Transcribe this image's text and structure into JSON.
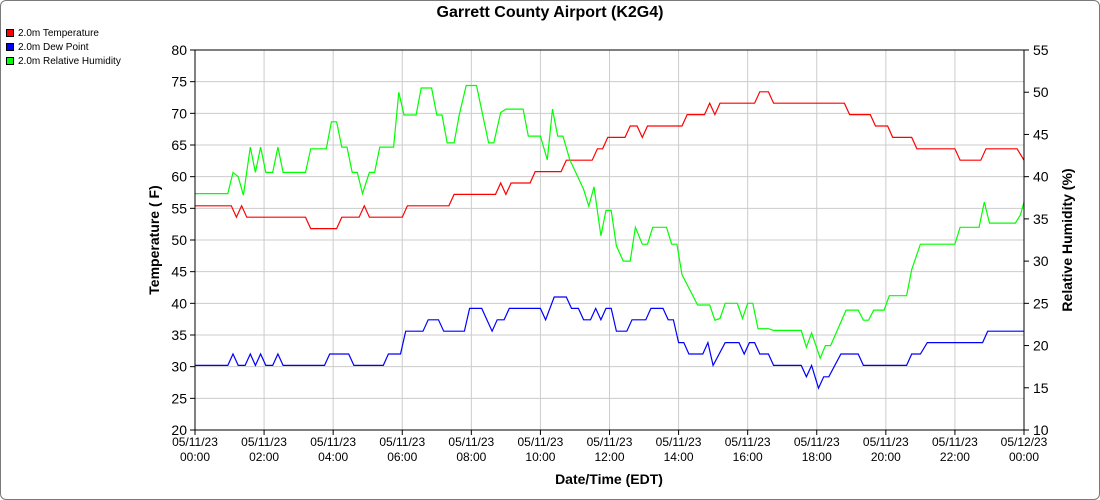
{
  "chart_data": {
    "type": "line",
    "title": "Garrett County Airport (K2G4)",
    "xlabel": "Date/Time (EDT)",
    "ylabel": "Temperature ( F)",
    "y2label": "Relative Humidity (%)",
    "ylim": [
      20,
      80
    ],
    "y2lim": [
      10,
      55
    ],
    "yticks": [
      20,
      25,
      30,
      35,
      40,
      45,
      50,
      55,
      60,
      65,
      70,
      75,
      80
    ],
    "y2ticks": [
      10,
      15,
      20,
      25,
      30,
      35,
      40,
      45,
      50,
      55
    ],
    "xlim": [
      0,
      24
    ],
    "xticks": [
      {
        "date": "05/11/23",
        "time": "00:00"
      },
      {
        "date": "05/11/23",
        "time": "02:00"
      },
      {
        "date": "05/11/23",
        "time": "04:00"
      },
      {
        "date": "05/11/23",
        "time": "06:00"
      },
      {
        "date": "05/11/23",
        "time": "08:00"
      },
      {
        "date": "05/11/23",
        "time": "10:00"
      },
      {
        "date": "05/11/23",
        "time": "12:00"
      },
      {
        "date": "05/11/23",
        "time": "14:00"
      },
      {
        "date": "05/11/23",
        "time": "16:00"
      },
      {
        "date": "05/11/23",
        "time": "18:00"
      },
      {
        "date": "05/11/23",
        "time": "20:00"
      },
      {
        "date": "05/11/23",
        "time": "22:00"
      },
      {
        "date": "05/12/23",
        "time": "00:00"
      }
    ],
    "grid": true,
    "legend_position": "top-left",
    "series": [
      {
        "name": "2.0m Temperature",
        "color": "#ff0000",
        "axis": "left",
        "points": [
          [
            0,
            55.4
          ],
          [
            1.05,
            55.4
          ],
          [
            1.2,
            53.6
          ],
          [
            1.35,
            55.4
          ],
          [
            1.5,
            53.6
          ],
          [
            3.2,
            53.6
          ],
          [
            3.35,
            51.8
          ],
          [
            4.1,
            51.8
          ],
          [
            4.25,
            53.6
          ],
          [
            4.75,
            53.6
          ],
          [
            4.9,
            55.4
          ],
          [
            5.05,
            53.6
          ],
          [
            6.0,
            53.6
          ],
          [
            6.15,
            55.4
          ],
          [
            7.35,
            55.4
          ],
          [
            7.5,
            57.2
          ],
          [
            8.7,
            57.2
          ],
          [
            8.85,
            59.0
          ],
          [
            9.0,
            57.2
          ],
          [
            9.15,
            59.0
          ],
          [
            9.7,
            59.0
          ],
          [
            9.85,
            60.8
          ],
          [
            10.6,
            60.8
          ],
          [
            10.75,
            62.6
          ],
          [
            11.5,
            62.6
          ],
          [
            11.65,
            64.4
          ],
          [
            11.8,
            64.4
          ],
          [
            11.95,
            66.2
          ],
          [
            12.45,
            66.2
          ],
          [
            12.6,
            68.0
          ],
          [
            12.8,
            68.0
          ],
          [
            12.95,
            66.2
          ],
          [
            13.1,
            68.0
          ],
          [
            14.1,
            68.0
          ],
          [
            14.25,
            69.8
          ],
          [
            14.75,
            69.8
          ],
          [
            14.9,
            71.6
          ],
          [
            15.05,
            69.8
          ],
          [
            15.2,
            71.6
          ],
          [
            16.2,
            71.6
          ],
          [
            16.35,
            73.4
          ],
          [
            16.6,
            73.4
          ],
          [
            16.75,
            71.6
          ],
          [
            18.8,
            71.6
          ],
          [
            18.95,
            69.8
          ],
          [
            19.55,
            69.8
          ],
          [
            19.7,
            68.0
          ],
          [
            20.05,
            68.0
          ],
          [
            20.2,
            66.2
          ],
          [
            20.75,
            66.2
          ],
          [
            20.9,
            64.4
          ],
          [
            22.0,
            64.4
          ],
          [
            22.15,
            62.6
          ],
          [
            22.75,
            62.6
          ],
          [
            22.9,
            64.4
          ],
          [
            23.8,
            64.4
          ],
          [
            24.0,
            62.6
          ]
        ]
      },
      {
        "name": "2.0m Dew Point",
        "color": "#0000ff",
        "axis": "left",
        "points": [
          [
            0,
            30.2
          ],
          [
            0.95,
            30.2
          ],
          [
            1.1,
            32.0
          ],
          [
            1.25,
            30.2
          ],
          [
            1.45,
            30.2
          ],
          [
            1.6,
            32.0
          ],
          [
            1.75,
            30.2
          ],
          [
            1.9,
            32.0
          ],
          [
            2.05,
            30.2
          ],
          [
            2.25,
            30.2
          ],
          [
            2.4,
            32.0
          ],
          [
            2.55,
            30.2
          ],
          [
            3.75,
            30.2
          ],
          [
            3.9,
            32.0
          ],
          [
            4.45,
            32.0
          ],
          [
            4.6,
            30.2
          ],
          [
            5.45,
            30.2
          ],
          [
            5.6,
            32.0
          ],
          [
            5.95,
            32.0
          ],
          [
            6.1,
            35.6
          ],
          [
            6.6,
            35.6
          ],
          [
            6.75,
            37.4
          ],
          [
            7.05,
            37.4
          ],
          [
            7.2,
            35.6
          ],
          [
            7.8,
            35.6
          ],
          [
            7.95,
            39.2
          ],
          [
            8.3,
            39.2
          ],
          [
            8.45,
            37.4
          ],
          [
            8.6,
            35.6
          ],
          [
            8.75,
            37.4
          ],
          [
            8.95,
            37.4
          ],
          [
            9.1,
            39.2
          ],
          [
            10.0,
            39.2
          ],
          [
            10.15,
            37.4
          ],
          [
            10.4,
            41.0
          ],
          [
            10.75,
            41.0
          ],
          [
            10.9,
            39.2
          ],
          [
            11.1,
            39.2
          ],
          [
            11.25,
            37.4
          ],
          [
            11.45,
            37.4
          ],
          [
            11.6,
            39.2
          ],
          [
            11.75,
            37.4
          ],
          [
            11.9,
            39.2
          ],
          [
            12.05,
            39.2
          ],
          [
            12.2,
            35.6
          ],
          [
            12.5,
            35.6
          ],
          [
            12.65,
            37.4
          ],
          [
            13.05,
            37.4
          ],
          [
            13.2,
            39.2
          ],
          [
            13.55,
            39.2
          ],
          [
            13.7,
            37.4
          ],
          [
            13.85,
            37.4
          ],
          [
            14.0,
            33.8
          ],
          [
            14.15,
            33.8
          ],
          [
            14.3,
            32.0
          ],
          [
            14.7,
            32.0
          ],
          [
            14.85,
            33.8
          ],
          [
            15.0,
            30.2
          ],
          [
            15.35,
            33.8
          ],
          [
            15.75,
            33.8
          ],
          [
            15.9,
            32.0
          ],
          [
            16.05,
            33.8
          ],
          [
            16.2,
            33.8
          ],
          [
            16.35,
            32.0
          ],
          [
            16.6,
            32.0
          ],
          [
            16.75,
            30.2
          ],
          [
            17.55,
            30.2
          ],
          [
            17.7,
            28.4
          ],
          [
            17.85,
            30.2
          ],
          [
            18.05,
            26.6
          ],
          [
            18.2,
            28.4
          ],
          [
            18.35,
            28.4
          ],
          [
            18.7,
            32.0
          ],
          [
            19.2,
            32.0
          ],
          [
            19.35,
            30.2
          ],
          [
            20.6,
            30.2
          ],
          [
            20.75,
            32.0
          ],
          [
            21.0,
            32.0
          ],
          [
            21.2,
            33.8
          ],
          [
            22.8,
            33.8
          ],
          [
            22.95,
            35.6
          ],
          [
            24.0,
            35.6
          ]
        ]
      },
      {
        "name": "2.0m Relative Humidity",
        "color": "#00ff00",
        "axis": "right",
        "points": [
          [
            0,
            38.0
          ],
          [
            0.95,
            38.0
          ],
          [
            1.1,
            40.5
          ],
          [
            1.25,
            40.0
          ],
          [
            1.4,
            37.8
          ],
          [
            1.6,
            43.5
          ],
          [
            1.75,
            40.5
          ],
          [
            1.9,
            43.5
          ],
          [
            2.05,
            40.5
          ],
          [
            2.25,
            40.5
          ],
          [
            2.4,
            43.5
          ],
          [
            2.55,
            40.5
          ],
          [
            3.2,
            40.5
          ],
          [
            3.35,
            43.3
          ],
          [
            3.8,
            43.3
          ],
          [
            3.95,
            46.5
          ],
          [
            4.1,
            46.5
          ],
          [
            4.25,
            43.5
          ],
          [
            4.4,
            43.5
          ],
          [
            4.55,
            40.5
          ],
          [
            4.7,
            40.5
          ],
          [
            4.85,
            38.0
          ],
          [
            5.05,
            40.5
          ],
          [
            5.2,
            40.5
          ],
          [
            5.35,
            43.5
          ],
          [
            5.75,
            43.5
          ],
          [
            5.9,
            50.0
          ],
          [
            6.05,
            47.3
          ],
          [
            6.4,
            47.3
          ],
          [
            6.55,
            50.5
          ],
          [
            6.85,
            50.5
          ],
          [
            7.0,
            47.3
          ],
          [
            7.15,
            47.3
          ],
          [
            7.3,
            44.0
          ],
          [
            7.5,
            44.0
          ],
          [
            7.65,
            47.3
          ],
          [
            7.85,
            50.8
          ],
          [
            8.15,
            50.8
          ],
          [
            8.5,
            44.0
          ],
          [
            8.65,
            44.0
          ],
          [
            8.85,
            47.6
          ],
          [
            9.0,
            48.0
          ],
          [
            9.5,
            48.0
          ],
          [
            9.65,
            44.8
          ],
          [
            10.0,
            44.8
          ],
          [
            10.2,
            42.0
          ],
          [
            10.35,
            48.0
          ],
          [
            10.5,
            44.8
          ],
          [
            10.65,
            44.8
          ],
          [
            10.85,
            42.0
          ],
          [
            11.25,
            38.5
          ],
          [
            11.4,
            36.5
          ],
          [
            11.55,
            38.8
          ],
          [
            11.75,
            33.0
          ],
          [
            11.9,
            36.0
          ],
          [
            12.05,
            36.0
          ],
          [
            12.2,
            31.8
          ],
          [
            12.4,
            30.0
          ],
          [
            12.6,
            30.0
          ],
          [
            12.75,
            34.0
          ],
          [
            12.95,
            32.0
          ],
          [
            13.1,
            32.0
          ],
          [
            13.25,
            34.0
          ],
          [
            13.65,
            34.0
          ],
          [
            13.8,
            32.0
          ],
          [
            13.95,
            32.0
          ],
          [
            14.1,
            28.4
          ],
          [
            14.4,
            26.0
          ],
          [
            14.55,
            24.8
          ],
          [
            14.9,
            24.8
          ],
          [
            15.05,
            23.0
          ],
          [
            15.2,
            23.2
          ],
          [
            15.35,
            25.0
          ],
          [
            15.7,
            25.0
          ],
          [
            15.85,
            23.2
          ],
          [
            16.0,
            25.0
          ],
          [
            16.15,
            25.0
          ],
          [
            16.3,
            22.0
          ],
          [
            16.6,
            22.0
          ],
          [
            16.75,
            21.8
          ],
          [
            17.55,
            21.8
          ],
          [
            17.7,
            19.8
          ],
          [
            17.85,
            21.5
          ],
          [
            18.1,
            18.5
          ],
          [
            18.25,
            20.0
          ],
          [
            18.4,
            20.0
          ],
          [
            18.85,
            24.2
          ],
          [
            19.2,
            24.2
          ],
          [
            19.35,
            23.0
          ],
          [
            19.5,
            23.0
          ],
          [
            19.65,
            24.2
          ],
          [
            19.95,
            24.2
          ],
          [
            20.1,
            25.9
          ],
          [
            20.6,
            25.9
          ],
          [
            20.75,
            29.0
          ],
          [
            21.0,
            32.0
          ],
          [
            22.0,
            32.0
          ],
          [
            22.15,
            34.0
          ],
          [
            22.7,
            34.0
          ],
          [
            22.85,
            37.0
          ],
          [
            23.0,
            34.5
          ],
          [
            23.75,
            34.5
          ],
          [
            23.9,
            35.5
          ],
          [
            24.0,
            37.0
          ]
        ]
      }
    ]
  }
}
